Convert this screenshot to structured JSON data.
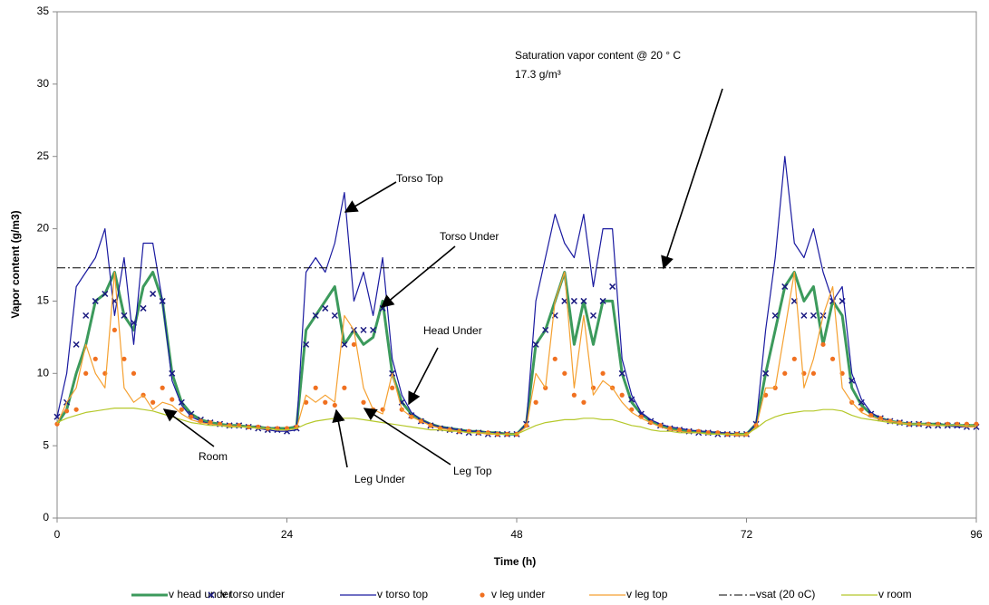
{
  "chart_data": {
    "type": "line",
    "x_label": "Time (h)",
    "y_label": "Vapor content (g/m3)",
    "xlim": [
      0,
      96
    ],
    "xticks": [
      0,
      24,
      48,
      72,
      96
    ],
    "ylim": [
      0,
      35
    ],
    "yticks": [
      0,
      5,
      10,
      15,
      20,
      25,
      30,
      35
    ],
    "grid": false,
    "legend": "bottom",
    "x": [
      0,
      1,
      2,
      3,
      4,
      5,
      6,
      7,
      8,
      9,
      10,
      11,
      12,
      13,
      14,
      15,
      16,
      17,
      18,
      19,
      20,
      21,
      22,
      23,
      24,
      25,
      26,
      27,
      28,
      29,
      30,
      31,
      32,
      33,
      34,
      35,
      36,
      37,
      38,
      39,
      40,
      41,
      42,
      43,
      44,
      45,
      46,
      47,
      48,
      49,
      50,
      51,
      52,
      53,
      54,
      55,
      56,
      57,
      58,
      59,
      60,
      61,
      62,
      63,
      64,
      65,
      66,
      67,
      68,
      69,
      70,
      71,
      72,
      73,
      74,
      75,
      76,
      77,
      78,
      79,
      80,
      81,
      82,
      83,
      84,
      85,
      86,
      87,
      88,
      89,
      90,
      91,
      92,
      93,
      94,
      95,
      96
    ],
    "series": [
      {
        "name": "v head under",
        "color": "#3c9a5c",
        "style": "line",
        "width": 3,
        "values": [
          6.5,
          7.5,
          10,
          12,
          15,
          15.5,
          17,
          14,
          13,
          16,
          17,
          15,
          10,
          8,
          7.2,
          6.8,
          6.6,
          6.5,
          6.4,
          6.4,
          6.3,
          6.3,
          6.2,
          6.2,
          6.2,
          6.3,
          13,
          14,
          15,
          16,
          12,
          13,
          12,
          12.5,
          15,
          10,
          8,
          7.2,
          6.8,
          6.5,
          6.3,
          6.2,
          6.1,
          6,
          6,
          5.9,
          5.9,
          5.8,
          5.8,
          6.5,
          12,
          13,
          15,
          17,
          12,
          15,
          12,
          15,
          15,
          10,
          8,
          7.2,
          6.7,
          6.4,
          6.2,
          6.1,
          6,
          6,
          5.9,
          5.9,
          5.8,
          5.8,
          5.8,
          6.5,
          10,
          13,
          16,
          17,
          15,
          16,
          12,
          15,
          14,
          9,
          7.8,
          7.2,
          6.9,
          6.7,
          6.6,
          6.5,
          6.5,
          6.5,
          6.5,
          6.4,
          6.4,
          6.4,
          6.4
        ]
      },
      {
        "name": "v torso under",
        "color": "#1a1a80",
        "style": "cross",
        "values": [
          7,
          8,
          12,
          14,
          15,
          15.5,
          15,
          14,
          13.5,
          14.5,
          15.5,
          15,
          10,
          8,
          7.2,
          6.8,
          6.6,
          6.5,
          6.4,
          6.4,
          6.3,
          6.2,
          6.1,
          6.1,
          6.0,
          6.2,
          12,
          14,
          14.5,
          14,
          12,
          13,
          13,
          13,
          14.5,
          10,
          8,
          7.1,
          6.7,
          6.4,
          6.2,
          6.1,
          6,
          5.9,
          5.9,
          5.8,
          5.8,
          5.8,
          5.8,
          6.5,
          12,
          13,
          14,
          15,
          15,
          15,
          14,
          15,
          16,
          10,
          8.2,
          7.2,
          6.7,
          6.4,
          6.2,
          6.1,
          6,
          5.9,
          5.9,
          5.8,
          5.8,
          5.8,
          5.8,
          6.5,
          10,
          14,
          16,
          15,
          14,
          14,
          14,
          15,
          15,
          9.5,
          8,
          7.2,
          6.9,
          6.7,
          6.6,
          6.5,
          6.5,
          6.4,
          6.4,
          6.4,
          6.4,
          6.3,
          6.3
        ]
      },
      {
        "name": "v torso top",
        "color": "#1a1aa0",
        "style": "line",
        "width": 1.2,
        "values": [
          7,
          10,
          16,
          17,
          18,
          20,
          14,
          18,
          12,
          19,
          19,
          15,
          9.5,
          7.8,
          7,
          6.7,
          6.5,
          6.4,
          6.4,
          6.3,
          6.3,
          6.2,
          6.1,
          6,
          6,
          6.1,
          17,
          18,
          17,
          19,
          22.5,
          15,
          17,
          14,
          18,
          11,
          8.5,
          7.3,
          6.8,
          6.5,
          6.3,
          6.2,
          6.1,
          6,
          6,
          5.9,
          5.9,
          5.8,
          5.8,
          6.5,
          15,
          18,
          21,
          19,
          18,
          21,
          16,
          20,
          20,
          11,
          8.5,
          7.3,
          6.8,
          6.5,
          6.3,
          6.2,
          6.1,
          6,
          6,
          5.9,
          5.9,
          5.8,
          5.8,
          6.5,
          13,
          18,
          25,
          19,
          18,
          20,
          17,
          15,
          16,
          10,
          8.2,
          7.3,
          6.9,
          6.7,
          6.6,
          6.5,
          6.5,
          6.4,
          6.4,
          6.4,
          6.3,
          6.3,
          6.3
        ]
      },
      {
        "name": "v leg under",
        "color": "#f07020",
        "style": "dot",
        "values": [
          6.5,
          7.4,
          7.5,
          10,
          11,
          10,
          13,
          11,
          10,
          8.5,
          8,
          9,
          8.2,
          7.5,
          7,
          6.7,
          6.6,
          6.5,
          6.4,
          6.4,
          6.3,
          6.3,
          6.2,
          6.2,
          6.2,
          6.3,
          8,
          9,
          8,
          7.8,
          9,
          12,
          8,
          7.5,
          7.5,
          9,
          7.5,
          7,
          6.7,
          6.4,
          6.2,
          6.1,
          6,
          6,
          5.9,
          5.9,
          5.8,
          5.8,
          5.8,
          6.4,
          8,
          9,
          11,
          10,
          8.5,
          8,
          9,
          10,
          9,
          8.5,
          7.5,
          7,
          6.6,
          6.4,
          6.2,
          6.1,
          6,
          6,
          5.9,
          5.9,
          5.8,
          5.8,
          5.8,
          6.4,
          8.5,
          9,
          10,
          11,
          10,
          10,
          12,
          11,
          10,
          8,
          7.5,
          7.1,
          6.9,
          6.7,
          6.6,
          6.5,
          6.5,
          6.5,
          6.5,
          6.5,
          6.5,
          6.5,
          6.5
        ]
      },
      {
        "name": "v leg top",
        "color": "#f5a030",
        "style": "line",
        "width": 1.2,
        "values": [
          6.5,
          8,
          9,
          12,
          10,
          9,
          17,
          9,
          8,
          8.5,
          7.5,
          8,
          7.8,
          7.2,
          6.8,
          6.6,
          6.5,
          6.4,
          6.4,
          6.3,
          6.3,
          6.2,
          6.2,
          6.1,
          6.1,
          6.2,
          8.5,
          8,
          8.5,
          8,
          14,
          13,
          9,
          7.5,
          7.2,
          10,
          7.5,
          7,
          6.7,
          6.4,
          6.2,
          6.1,
          6,
          5.9,
          5.9,
          5.8,
          5.8,
          5.8,
          5.8,
          6.3,
          10,
          9,
          15,
          17,
          9,
          14,
          8.5,
          9.5,
          9,
          8,
          7.3,
          6.9,
          6.6,
          6.3,
          6.1,
          6,
          5.9,
          5.9,
          5.8,
          5.8,
          5.8,
          5.7,
          5.7,
          6.3,
          9,
          9,
          13,
          17,
          9,
          11,
          14,
          16,
          9,
          8,
          7.3,
          7,
          6.8,
          6.7,
          6.6,
          6.5,
          6.5,
          6.4,
          6.4,
          6.4,
          6.4,
          6.3,
          6.3
        ]
      },
      {
        "name": "vsat (20 oC)",
        "color": "#000000",
        "style": "dashdot",
        "width": 1,
        "x": [
          0,
          96
        ],
        "values": [
          17.3,
          17.3
        ]
      },
      {
        "name": "v room",
        "color": "#b5c82a",
        "style": "line",
        "width": 1.2,
        "values": [
          6.6,
          6.9,
          7.1,
          7.3,
          7.4,
          7.5,
          7.6,
          7.6,
          7.6,
          7.5,
          7.4,
          7.2,
          7,
          6.8,
          6.6,
          6.5,
          6.4,
          6.4,
          6.3,
          6.3,
          6.3,
          6.2,
          6.2,
          6.1,
          6.1,
          6.2,
          6.5,
          6.7,
          6.8,
          6.9,
          6.9,
          6.9,
          6.8,
          6.7,
          6.6,
          6.5,
          6.4,
          6.3,
          6.2,
          6.1,
          6.1,
          6,
          6,
          5.9,
          5.9,
          5.9,
          5.8,
          5.8,
          5.8,
          6.1,
          6.4,
          6.6,
          6.7,
          6.8,
          6.8,
          6.9,
          6.9,
          6.8,
          6.8,
          6.6,
          6.4,
          6.3,
          6.1,
          6,
          6,
          5.9,
          5.9,
          5.9,
          5.8,
          5.8,
          5.8,
          5.8,
          5.8,
          6.2,
          6.7,
          7,
          7.2,
          7.3,
          7.4,
          7.4,
          7.5,
          7.5,
          7.4,
          7.1,
          6.9,
          6.8,
          6.7,
          6.6,
          6.5,
          6.5,
          6.5,
          6.5,
          6.4,
          6.4,
          6.4,
          6.4,
          6.4
        ]
      }
    ],
    "annotations": [
      {
        "text": "Torso Top"
      },
      {
        "text": "Torso Under"
      },
      {
        "text": "Head Under"
      },
      {
        "text": "Room"
      },
      {
        "text": "Leg Under"
      },
      {
        "text": "Leg Top"
      },
      {
        "text": "Saturation vapor content @ 20 ° C",
        "line2": "17.3 g/m³"
      }
    ]
  }
}
